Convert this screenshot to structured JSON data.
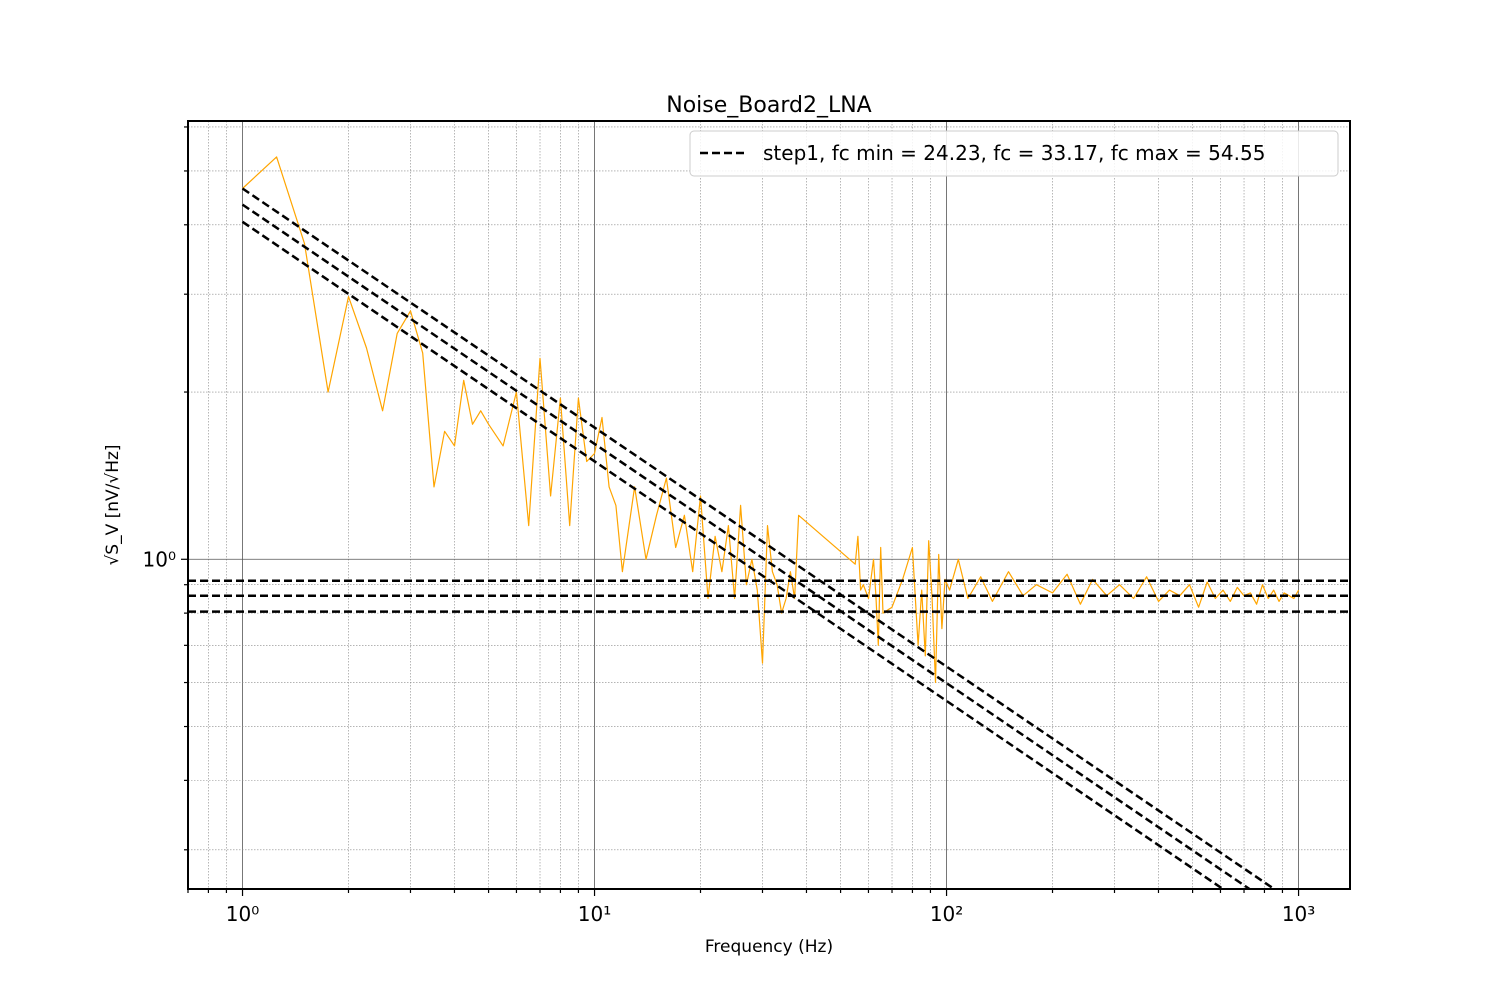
{
  "chart_data": {
    "type": "line",
    "title": "Noise_Board2_LNA",
    "xlabel": "Frequency (Hz)",
    "ylabel": "√S_V [nV/√Hz]",
    "x_scale": "log",
    "y_scale": "log",
    "xlim": [
      0.7,
      1400
    ],
    "ylim": [
      0.255,
      6.15
    ],
    "x_ticks": [
      {
        "value": 1,
        "label": "10⁰"
      },
      {
        "value": 10,
        "label": "10¹"
      },
      {
        "value": 100,
        "label": "10²"
      },
      {
        "value": 1000,
        "label": "10³"
      }
    ],
    "y_ticks": [
      {
        "value": 1,
        "label": "10⁰"
      }
    ],
    "grid": true,
    "legend": {
      "position": "upper-right",
      "label": "step1, fc min = 24.23, fc = 33.17, fc max = 54.55"
    },
    "noise_color": "#ffa500",
    "fit_color": "#000000",
    "series": [
      {
        "role": "measured-noise",
        "color": "#ffa500",
        "x": [
          1.0,
          1.25,
          1.5,
          1.75,
          2.0,
          2.25,
          2.5,
          2.75,
          3.0,
          3.25,
          3.5,
          3.75,
          4.0,
          4.25,
          4.5,
          4.75,
          5.0,
          5.5,
          6.0,
          6.5,
          7.0,
          7.5,
          8.0,
          8.5,
          9.0,
          9.5,
          10.0,
          10.5,
          11.0,
          11.5,
          12.0,
          13.0,
          14.0,
          15.0,
          16.0,
          17.0,
          18.0,
          19.0,
          20.0,
          21.0,
          22.0,
          23.0,
          24.0,
          25.0,
          26.0,
          27.0,
          28.0,
          29.0,
          30.0,
          31.0,
          32.0,
          33.0,
          34.0,
          35.0,
          36.0,
          37.0,
          38.0,
          55.0,
          56.0,
          57.0,
          58.0,
          60.0,
          62.0,
          63.0,
          64.0,
          65.0,
          66.0,
          70.0,
          75.0,
          80.0,
          83.0,
          85.0,
          87.0,
          89.0,
          91.0,
          93.0,
          95.0,
          97.0,
          99.0,
          102.0,
          108.0,
          115.0,
          125.0,
          135.0,
          150.0,
          165.0,
          180.0,
          200.0,
          220.0,
          240.0,
          260.0,
          285.0,
          310.0,
          340.0,
          370.0,
          400.0,
          430.0,
          460.0,
          490.0,
          520.0,
          550.0,
          580.0,
          610.0,
          640.0,
          670.0,
          700.0,
          730.0,
          760.0,
          790.0,
          820.0,
          850.0,
          880.0,
          910.0,
          940.0,
          970.0,
          1000.0
        ],
        "y": [
          4.65,
          5.3,
          3.7,
          2.0,
          2.97,
          2.4,
          1.85,
          2.55,
          2.8,
          2.35,
          1.35,
          1.7,
          1.6,
          2.1,
          1.75,
          1.85,
          1.75,
          1.6,
          2.0,
          1.15,
          2.3,
          1.3,
          1.95,
          1.15,
          1.95,
          1.5,
          1.55,
          1.8,
          1.35,
          1.25,
          0.95,
          1.35,
          1.0,
          1.2,
          1.4,
          1.05,
          1.2,
          0.95,
          1.3,
          0.85,
          1.1,
          0.95,
          1.15,
          0.85,
          1.25,
          0.9,
          1.0,
          0.88,
          0.65,
          1.15,
          0.95,
          0.9,
          0.8,
          0.85,
          0.95,
          0.85,
          1.2,
          0.98,
          1.1,
          0.88,
          0.9,
          0.85,
          1.0,
          0.86,
          0.7,
          1.05,
          0.8,
          0.82,
          0.92,
          1.05,
          0.7,
          0.88,
          0.67,
          1.08,
          0.85,
          0.6,
          1.02,
          0.75,
          0.92,
          0.88,
          1.0,
          0.85,
          0.93,
          0.84,
          0.95,
          0.86,
          0.9,
          0.87,
          0.94,
          0.83,
          0.92,
          0.86,
          0.9,
          0.85,
          0.93,
          0.84,
          0.88,
          0.86,
          0.9,
          0.82,
          0.91,
          0.85,
          0.88,
          0.84,
          0.89,
          0.86,
          0.87,
          0.83,
          0.9,
          0.85,
          0.88,
          0.84,
          0.87,
          0.86,
          0.85,
          0.88
        ]
      },
      {
        "role": "fit-1/f-upper",
        "style": "dashed",
        "color": "#000000",
        "x": [
          1,
          1000
        ],
        "y": [
          4.65,
          0.238
        ]
      },
      {
        "role": "fit-1/f-mid",
        "style": "dashed",
        "color": "#000000",
        "x": [
          1,
          1000
        ],
        "y": [
          4.35,
          0.222
        ]
      },
      {
        "role": "fit-1/f-lower",
        "style": "dashed",
        "color": "#000000",
        "x": [
          1,
          1000
        ],
        "y": [
          4.05,
          0.206
        ]
      },
      {
        "role": "white-noise-upper",
        "style": "dashed",
        "color": "#000000",
        "x": [
          0.7,
          1400
        ],
        "y": [
          0.915,
          0.915
        ]
      },
      {
        "role": "white-noise-mid",
        "style": "dashed",
        "color": "#000000",
        "x": [
          0.7,
          1400
        ],
        "y": [
          0.86,
          0.86
        ]
      },
      {
        "role": "white-noise-lower",
        "style": "dashed",
        "color": "#000000",
        "x": [
          0.7,
          1400
        ],
        "y": [
          0.805,
          0.805
        ]
      }
    ]
  }
}
